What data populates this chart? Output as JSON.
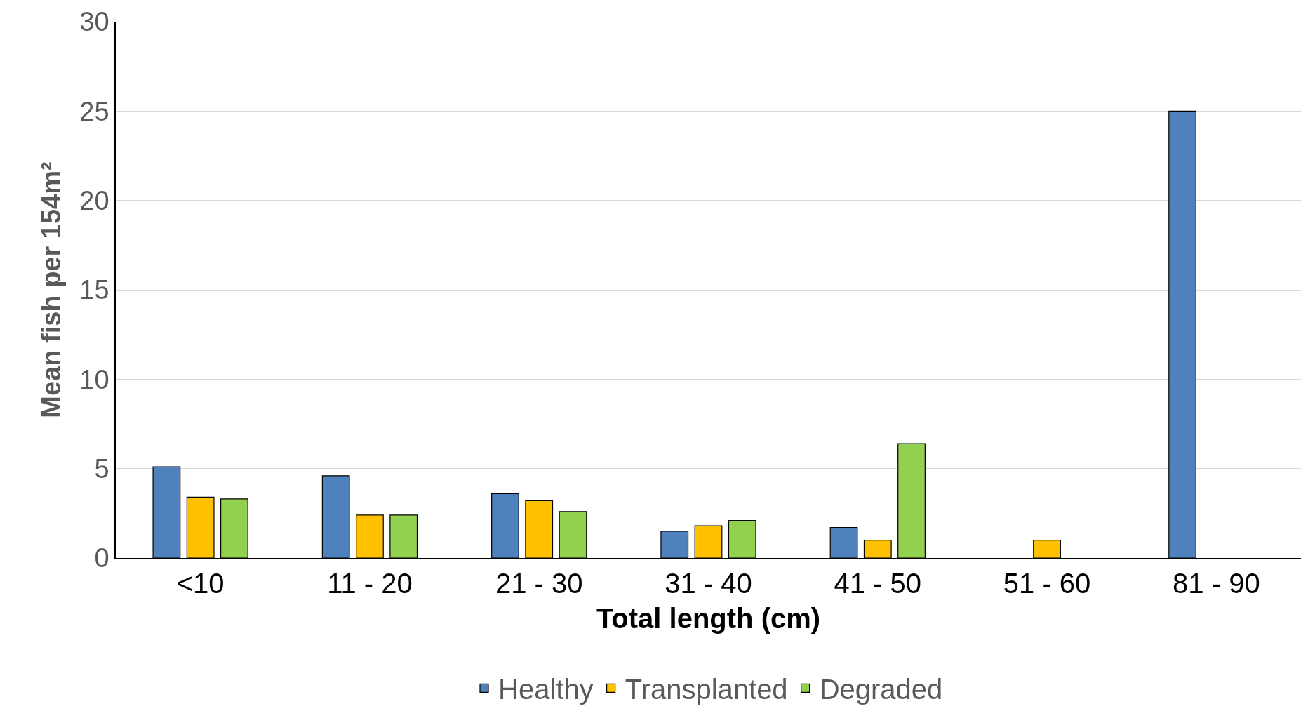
{
  "chart_data": {
    "type": "bar",
    "xlabel": "Total length (cm)",
    "ylabel": "Mean fish per 154m²",
    "categories": [
      "<10",
      "11 - 20",
      "21 - 30",
      "31 - 40",
      "41 - 50",
      "51 - 60",
      "81 - 90"
    ],
    "series": [
      {
        "name": "Healthy",
        "color": "#4f81bd",
        "values": [
          5.1,
          4.6,
          3.6,
          1.5,
          1.7,
          null,
          25
        ]
      },
      {
        "name": "Transplanted",
        "color": "#ffc000",
        "values": [
          3.4,
          2.4,
          3.2,
          1.8,
          1.0,
          1.0,
          null
        ]
      },
      {
        "name": "Degraded",
        "color": "#92d050",
        "values": [
          3.3,
          2.4,
          2.6,
          2.1,
          6.4,
          null,
          null
        ]
      }
    ],
    "ylim": [
      0,
      30
    ],
    "yticks": [
      0,
      5,
      10,
      15,
      20,
      25,
      30
    ],
    "grid": "y",
    "legend": "bottom"
  }
}
